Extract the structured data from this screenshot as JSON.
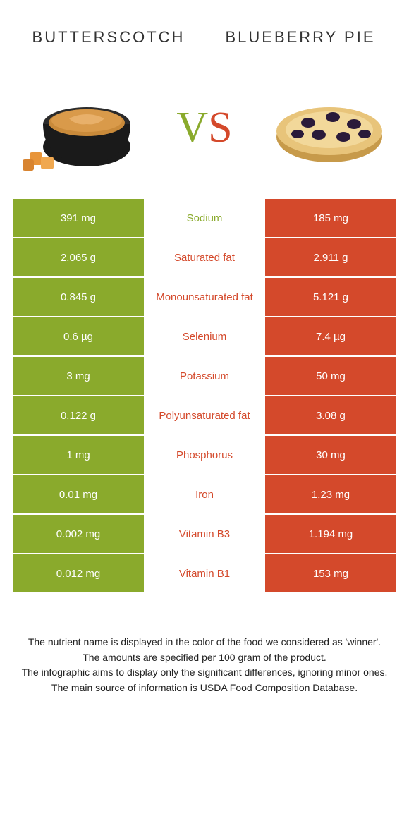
{
  "header": {
    "left": "Butterscotch",
    "right": "Blueberry pie"
  },
  "vs": {
    "v": "V",
    "s": "S"
  },
  "colors": {
    "green": "#8aaa2c",
    "red": "#d4492b",
    "white": "#ffffff",
    "text": "#333333"
  },
  "rows": [
    {
      "left": "391 mg",
      "label": "Sodium",
      "right": "185 mg",
      "winner": "left"
    },
    {
      "left": "2.065 g",
      "label": "Saturated fat",
      "right": "2.911 g",
      "winner": "right"
    },
    {
      "left": "0.845 g",
      "label": "Monounsaturated fat",
      "right": "5.121 g",
      "winner": "right"
    },
    {
      "left": "0.6 µg",
      "label": "Selenium",
      "right": "7.4 µg",
      "winner": "right"
    },
    {
      "left": "3 mg",
      "label": "Potassium",
      "right": "50 mg",
      "winner": "right"
    },
    {
      "left": "0.122 g",
      "label": "Polyunsaturated fat",
      "right": "3.08 g",
      "winner": "right"
    },
    {
      "left": "1 mg",
      "label": "Phosphorus",
      "right": "30 mg",
      "winner": "right"
    },
    {
      "left": "0.01 mg",
      "label": "Iron",
      "right": "1.23 mg",
      "winner": "right"
    },
    {
      "left": "0.002 mg",
      "label": "Vitamin B3",
      "right": "1.194 mg",
      "winner": "right"
    },
    {
      "left": "0.012 mg",
      "label": "Vitamin B1",
      "right": "153 mg",
      "winner": "right"
    }
  ],
  "footer": {
    "line1": "The nutrient name is displayed in the color of the food we considered as 'winner'.",
    "line2": "The amounts are specified per 100 gram of the product.",
    "line3": "The infographic aims to display only the significant differences, ignoring minor ones.",
    "line4": "The main source of information is USDA Food Composition Database."
  }
}
